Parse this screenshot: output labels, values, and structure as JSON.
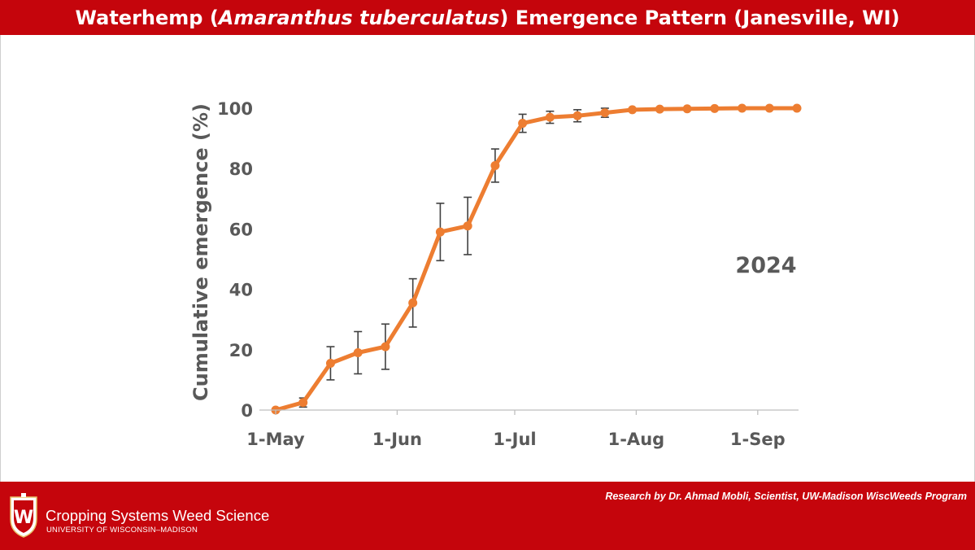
{
  "header": {
    "title_pre": "Waterhemp (",
    "title_italic": "Amaranthus tuberculatus",
    "title_post": ") Emergence Pattern (Janesville, WI)"
  },
  "footer": {
    "credit": "Research by Dr. Ahmad Mobli, Scientist, UW-Madison WiscWeeds Program",
    "org": "Cropping Systems Weed Science",
    "university": "UNIVERSITY OF WISCONSIN–MADISON",
    "crest_letter": "W"
  },
  "colors": {
    "brand_red": "#c5050c",
    "series": "#ed7d31",
    "axis_text": "#595959",
    "error_bar": "#404040"
  },
  "chart_data": {
    "type": "line",
    "title": "",
    "xlabel": "",
    "ylabel": "Cumulative emergence (%)",
    "annotation": "2024",
    "ylim": [
      0,
      100
    ],
    "y_ticks": [
      0,
      20,
      40,
      60,
      80,
      100
    ],
    "x_range_days": [
      0,
      133
    ],
    "x_ticks": [
      {
        "label": "1-May",
        "day": 0
      },
      {
        "label": "1-Jun",
        "day": 31
      },
      {
        "label": "1-Jul",
        "day": 61
      },
      {
        "label": "1-Aug",
        "day": 92
      },
      {
        "label": "1-Sep",
        "day": 123
      }
    ],
    "grid": false,
    "legend": "none",
    "series": [
      {
        "x_days": [
          0,
          7,
          14,
          21,
          28,
          35,
          42,
          49,
          56,
          63,
          70,
          77,
          84,
          91,
          98,
          105,
          112,
          119,
          126,
          133
        ],
        "values": [
          0,
          2.5,
          15.5,
          19,
          21,
          35.5,
          59,
          61,
          81,
          95,
          97,
          97.5,
          98.5,
          99.5,
          99.7,
          99.8,
          99.9,
          100,
          100,
          100
        ],
        "error": [
          0,
          1.5,
          5.5,
          7,
          7.5,
          8,
          9.5,
          9.5,
          5.5,
          3,
          2,
          2,
          1.5,
          0,
          0,
          0,
          0,
          0,
          0,
          0
        ]
      }
    ]
  }
}
